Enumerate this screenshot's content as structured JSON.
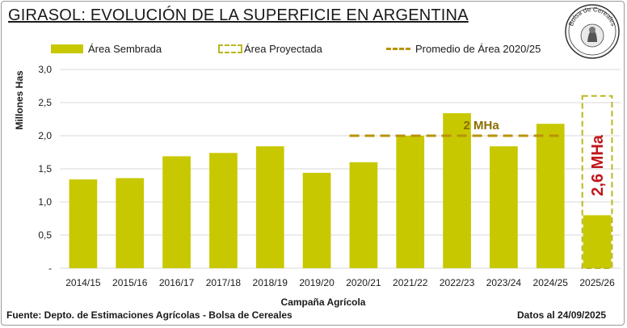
{
  "title": "GIRASOL: EVOLUCIÓN DE LA SUPERFICIE EN ARGENTINA",
  "legend": {
    "sown": "Área Sembrada",
    "projected": "Área Proyectada",
    "average": "Promedio de Área 2020/25"
  },
  "logo": {
    "text": "Bolsa de Cereales",
    "icon": "bolsa-de-cereales-seal"
  },
  "footer": {
    "source": "Fuente: Depto. de Estimaciones Agrícolas - Bolsa de Cereales",
    "date": "Datos al 24/09/2025"
  },
  "colors": {
    "bar": "#c8c800",
    "projected_border": "#b8b820",
    "average_line": "#b8930a",
    "average_label": "#8a6d00",
    "projected_label": "#c0161b",
    "grid": "#d9d9d9"
  },
  "chart_data": {
    "type": "bar",
    "xlabel": "Campaña Agrícola",
    "ylabel": "Millones Has",
    "ylim": [
      0,
      3.0
    ],
    "yticks": [
      "-",
      "0,5",
      "1,0",
      "1,5",
      "2,0",
      "2,5",
      "3,0"
    ],
    "ytick_values": [
      0,
      0.5,
      1.0,
      1.5,
      2.0,
      2.5,
      3.0
    ],
    "grid": true,
    "legend_position": "top",
    "categories": [
      "2014/15",
      "2015/16",
      "2016/17",
      "2017/18",
      "2018/19",
      "2019/20",
      "2020/21",
      "2021/22",
      "2022/23",
      "2023/24",
      "2024/25",
      "2025/26"
    ],
    "series": [
      {
        "name": "Área Sembrada",
        "values": [
          1.34,
          1.36,
          1.69,
          1.74,
          1.84,
          1.44,
          1.6,
          2.0,
          2.34,
          1.84,
          2.18,
          0.8
        ]
      },
      {
        "name": "Área Proyectada",
        "values": [
          null,
          null,
          null,
          null,
          null,
          null,
          null,
          null,
          null,
          null,
          null,
          2.6
        ]
      }
    ],
    "average": {
      "name": "Promedio de Área 2020/25",
      "value": 2.0,
      "from": "2020/21",
      "to": "2024/25",
      "label": "2 MHa"
    },
    "projected_label": "2,6 MHa"
  }
}
